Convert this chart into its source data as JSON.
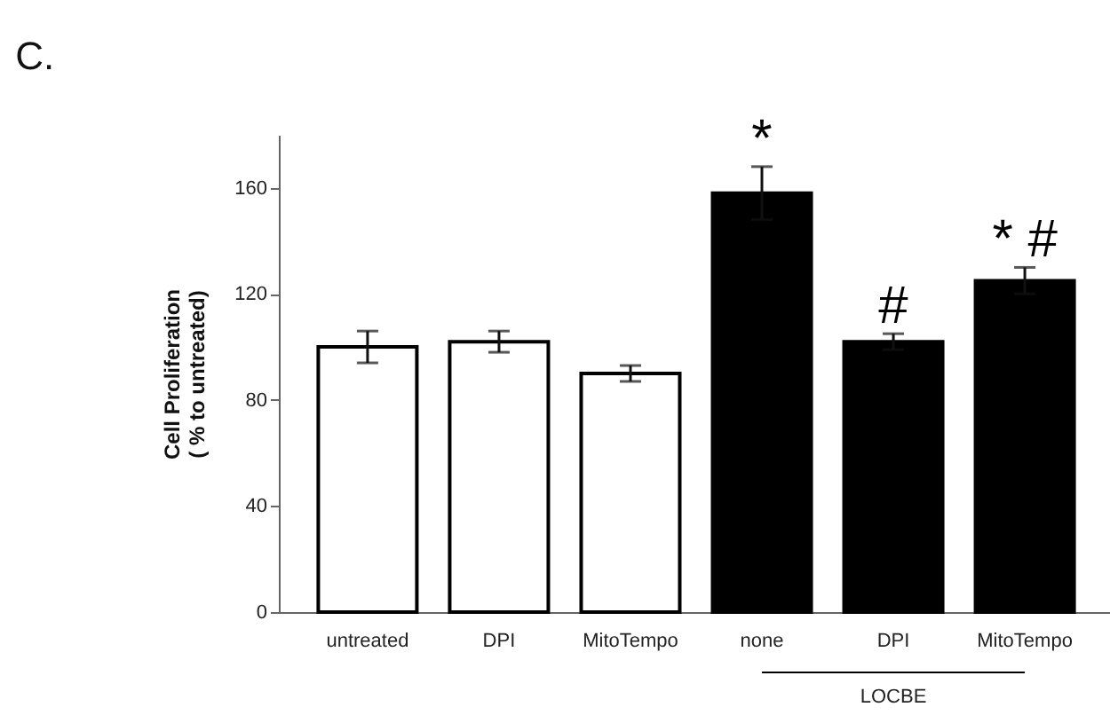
{
  "chart_data": {
    "type": "bar",
    "title": "C.",
    "ylabel": "Cell Proliferation\n( % to untreated)",
    "categories": [
      "untreated",
      "DPI",
      "MitoTempo",
      "none",
      "DPI",
      "MitoTempo"
    ],
    "values": [
      100,
      102,
      90,
      158,
      102,
      125
    ],
    "errors": [
      6,
      4,
      3,
      10,
      3,
      5
    ],
    "colors": [
      "#ffffff",
      "#ffffff",
      "#ffffff",
      "#000000",
      "#000000",
      "#000000"
    ],
    "ylim": [
      0,
      180
    ],
    "yticks": [
      0,
      40,
      80,
      120,
      160
    ],
    "grid": false,
    "annotations": [
      "*",
      "#",
      "* #",
      "LOCBE"
    ]
  }
}
